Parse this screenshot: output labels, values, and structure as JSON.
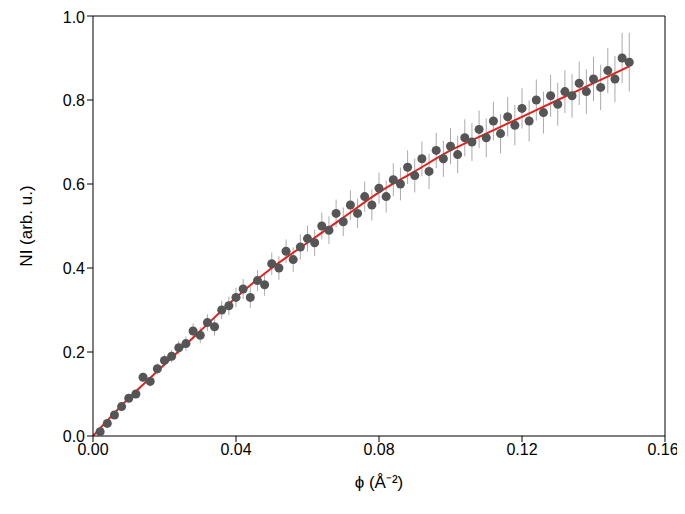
{
  "chart_data": {
    "type": "scatter",
    "x_label": "ϕ (Å⁻²)",
    "y_label": "NI (arb. u.)",
    "xlim": [
      0,
      0.16
    ],
    "ylim": [
      0,
      1.0
    ],
    "xticks": [
      {
        "value": 0,
        "label": "0.00"
      },
      {
        "value": 0.04,
        "label": "0.04"
      },
      {
        "value": 0.08,
        "label": "0.08"
      },
      {
        "value": 0.12,
        "label": "0.12"
      },
      {
        "value": 0.16,
        "label": "0.16"
      }
    ],
    "yticks": [
      {
        "value": 0,
        "label": "0.0"
      },
      {
        "value": 0.2,
        "label": "0.2"
      },
      {
        "value": 0.4,
        "label": "0.4"
      },
      {
        "value": 0.6,
        "label": "0.6"
      },
      {
        "value": 0.8,
        "label": "0.8"
      },
      {
        "value": 1.0,
        "label": "1.0"
      }
    ],
    "grid": false,
    "series": [
      {
        "type": "scatter",
        "color": "#555555",
        "marker": "circle",
        "x": [
          0.002,
          0.004,
          0.006,
          0.008,
          0.01,
          0.012,
          0.014,
          0.016,
          0.018,
          0.02,
          0.022,
          0.024,
          0.026,
          0.028,
          0.03,
          0.032,
          0.034,
          0.036,
          0.038,
          0.04,
          0.042,
          0.044,
          0.046,
          0.048,
          0.05,
          0.052,
          0.054,
          0.056,
          0.058,
          0.06,
          0.062,
          0.064,
          0.066,
          0.068,
          0.07,
          0.072,
          0.074,
          0.076,
          0.078,
          0.08,
          0.082,
          0.084,
          0.086,
          0.088,
          0.09,
          0.092,
          0.094,
          0.096,
          0.098,
          0.1,
          0.102,
          0.104,
          0.106,
          0.108,
          0.11,
          0.112,
          0.114,
          0.116,
          0.118,
          0.12,
          0.122,
          0.124,
          0.126,
          0.128,
          0.13,
          0.132,
          0.134,
          0.136,
          0.138,
          0.14,
          0.142,
          0.144,
          0.146,
          0.148,
          0.15
        ],
        "values": [
          0.01,
          0.03,
          0.05,
          0.07,
          0.09,
          0.1,
          0.14,
          0.13,
          0.16,
          0.18,
          0.19,
          0.21,
          0.22,
          0.25,
          0.24,
          0.27,
          0.26,
          0.3,
          0.31,
          0.33,
          0.35,
          0.33,
          0.37,
          0.36,
          0.41,
          0.4,
          0.44,
          0.42,
          0.45,
          0.47,
          0.46,
          0.5,
          0.49,
          0.53,
          0.51,
          0.55,
          0.53,
          0.57,
          0.55,
          0.59,
          0.57,
          0.61,
          0.6,
          0.64,
          0.62,
          0.66,
          0.63,
          0.68,
          0.66,
          0.69,
          0.67,
          0.71,
          0.7,
          0.73,
          0.71,
          0.75,
          0.72,
          0.76,
          0.74,
          0.78,
          0.75,
          0.8,
          0.77,
          0.81,
          0.79,
          0.82,
          0.81,
          0.84,
          0.82,
          0.85,
          0.83,
          0.87,
          0.85,
          0.9,
          0.89
        ],
        "errors": [
          0.005,
          0.006,
          0.007,
          0.008,
          0.009,
          0.01,
          0.011,
          0.012,
          0.013,
          0.014,
          0.015,
          0.016,
          0.017,
          0.018,
          0.019,
          0.02,
          0.021,
          0.022,
          0.022,
          0.023,
          0.024,
          0.025,
          0.025,
          0.026,
          0.027,
          0.028,
          0.028,
          0.029,
          0.03,
          0.031,
          0.031,
          0.032,
          0.033,
          0.033,
          0.034,
          0.035,
          0.035,
          0.036,
          0.037,
          0.037,
          0.038,
          0.039,
          0.039,
          0.04,
          0.04,
          0.041,
          0.042,
          0.042,
          0.043,
          0.043,
          0.044,
          0.044,
          0.045,
          0.045,
          0.046,
          0.046,
          0.047,
          0.047,
          0.048,
          0.048,
          0.049,
          0.049,
          0.05,
          0.05,
          0.051,
          0.051,
          0.052,
          0.052,
          0.053,
          0.053,
          0.054,
          0.054,
          0.055,
          0.06,
          0.07
        ]
      },
      {
        "type": "line",
        "color": "#e3201b",
        "line_style": "solid",
        "x": [
          0,
          0.01,
          0.02,
          0.03,
          0.04,
          0.05,
          0.06,
          0.07,
          0.08,
          0.09,
          0.1,
          0.11,
          0.12,
          0.13,
          0.14,
          0.15
        ],
        "values": [
          0,
          0.09,
          0.17,
          0.25,
          0.33,
          0.4,
          0.46,
          0.52,
          0.58,
          0.63,
          0.68,
          0.72,
          0.76,
          0.8,
          0.84,
          0.88
        ]
      }
    ]
  }
}
